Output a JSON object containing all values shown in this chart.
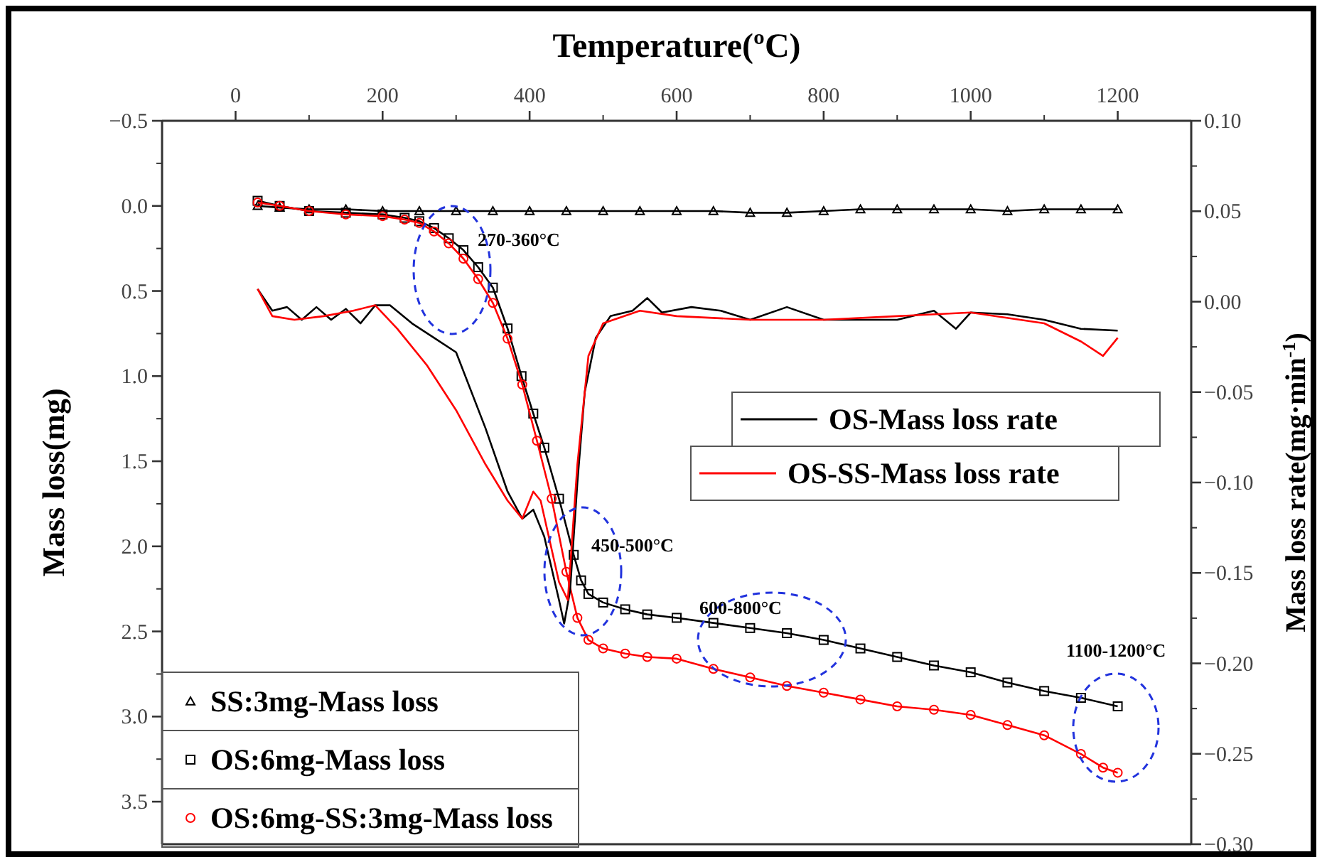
{
  "chart_data": {
    "type": "line",
    "xlabel": "Temperature(ºC)",
    "ylabel": "Mass loss(mg)",
    "y2label": "Mass loss rate(mg·min$^{-1}$)",
    "xlim": [
      -100,
      1300
    ],
    "xticks": [
      0,
      200,
      400,
      600,
      800,
      1000,
      1200
    ],
    "ylim": [
      3.75,
      -0.5
    ],
    "yticks": [
      {
        "value": -0.5,
        "label": "−0.5"
      },
      {
        "value": 0,
        "label": "0.0"
      },
      {
        "value": 0.5,
        "label": "0.5"
      },
      {
        "value": 1,
        "label": "1.0"
      },
      {
        "value": 1.5,
        "label": "1.5"
      },
      {
        "value": 2,
        "label": "2.0"
      },
      {
        "value": 2.5,
        "label": "2.5"
      },
      {
        "value": 3,
        "label": "3.0"
      },
      {
        "value": 3.5,
        "label": "3.5"
      }
    ],
    "y2lim": [
      -0.3,
      0.1
    ],
    "y2ticks": [
      {
        "value": 0.1,
        "label": "0.10"
      },
      {
        "value": 0.05,
        "label": "0.05"
      },
      {
        "value": 0,
        "label": "0.00"
      },
      {
        "value": -0.05,
        "label": "−0.05"
      },
      {
        "value": -0.1,
        "label": "−0.10"
      },
      {
        "value": -0.15,
        "label": "−0.15"
      },
      {
        "value": -0.2,
        "label": "−0.20"
      },
      {
        "value": -0.25,
        "label": "−0.25"
      },
      {
        "value": -0.3,
        "label": "−0.30"
      }
    ],
    "legend": "bottom left",
    "grid": false,
    "line_style": "solid",
    "series": [
      {
        "name": "SS:3mg-Mass loss",
        "color": "#000000",
        "marker": "triangle",
        "x": [
          30,
          60,
          100,
          150,
          200,
          250,
          300,
          350,
          400,
          450,
          500,
          550,
          600,
          650,
          700,
          750,
          800,
          850,
          900,
          950,
          1000,
          1050,
          1100,
          1150,
          1200
        ],
        "values": [
          0,
          0.01,
          0.02,
          0.02,
          0.03,
          0.03,
          0.03,
          0.03,
          0.03,
          0.03,
          0.03,
          0.03,
          0.03,
          0.03,
          0.04,
          0.04,
          0.03,
          0.02,
          0.02,
          0.02,
          0.02,
          0.03,
          0.02,
          0.02,
          0.02
        ]
      },
      {
        "name": "OS:6mg-Mass loss",
        "color": "#000000",
        "marker": "square",
        "x": [
          30,
          60,
          100,
          150,
          200,
          230,
          250,
          270,
          290,
          310,
          330,
          350,
          370,
          389,
          405,
          420,
          440,
          460,
          470,
          480,
          500,
          530,
          560,
          600,
          650,
          700,
          750,
          800,
          850,
          900,
          950,
          1000,
          1050,
          1100,
          1150,
          1200
        ],
        "values": [
          -0.03,
          0,
          0.03,
          0.04,
          0.05,
          0.07,
          0.09,
          0.13,
          0.19,
          0.26,
          0.36,
          0.48,
          0.72,
          1.0,
          1.22,
          1.42,
          1.72,
          2.05,
          2.2,
          2.28,
          2.33,
          2.37,
          2.4,
          2.42,
          2.45,
          2.48,
          2.51,
          2.55,
          2.6,
          2.65,
          2.7,
          2.74,
          2.8,
          2.85,
          2.89,
          2.94
        ]
      },
      {
        "name": "OS:6mg-SS:3mg-Mass loss",
        "color": "#ff0000",
        "marker": "circle",
        "x": [
          30,
          60,
          100,
          150,
          200,
          230,
          250,
          270,
          290,
          310,
          330,
          350,
          370,
          390,
          410,
          430,
          450,
          465,
          480,
          500,
          530,
          560,
          600,
          650,
          700,
          750,
          800,
          850,
          900,
          950,
          1000,
          1050,
          1100,
          1150,
          1180,
          1200
        ],
        "values": [
          -0.02,
          0,
          0.03,
          0.05,
          0.06,
          0.08,
          0.1,
          0.15,
          0.22,
          0.31,
          0.43,
          0.57,
          0.78,
          1.05,
          1.38,
          1.72,
          2.15,
          2.42,
          2.55,
          2.6,
          2.63,
          2.65,
          2.66,
          2.72,
          2.77,
          2.82,
          2.86,
          2.9,
          2.94,
          2.96,
          2.99,
          3.05,
          3.11,
          3.22,
          3.3,
          3.33
        ]
      },
      {
        "name": "OS-Mass loss rate",
        "color": "#000000",
        "axis": "y2",
        "marker": "none",
        "x": [
          30,
          50,
          70,
          90,
          110,
          130,
          150,
          170,
          190,
          210,
          240,
          270,
          300,
          340,
          370,
          390,
          405,
          420,
          440,
          447,
          455,
          465,
          475,
          490,
          510,
          540,
          560,
          580,
          620,
          660,
          700,
          750,
          800,
          850,
          900,
          950,
          980,
          1000,
          1050,
          1100,
          1150,
          1200
        ],
        "values": [
          0.007,
          -0.005,
          -0.003,
          -0.01,
          -0.003,
          -0.01,
          -0.004,
          -0.012,
          -0.002,
          -0.002,
          -0.012,
          -0.02,
          -0.028,
          -0.07,
          -0.105,
          -0.12,
          -0.115,
          -0.13,
          -0.165,
          -0.178,
          -0.16,
          -0.1,
          -0.05,
          -0.02,
          -0.008,
          -0.005,
          0.002,
          -0.006,
          -0.003,
          -0.005,
          -0.01,
          -0.003,
          -0.01,
          -0.01,
          -0.01,
          -0.005,
          -0.015,
          -0.006,
          -0.007,
          -0.01,
          -0.015,
          -0.016
        ]
      },
      {
        "name": "OS-SS-Mass loss rate",
        "color": "#ff0000",
        "axis": "y2",
        "marker": "none",
        "x": [
          30,
          50,
          80,
          120,
          160,
          190,
          220,
          260,
          300,
          340,
          370,
          390,
          405,
          415,
          440,
          452,
          465,
          480,
          500,
          550,
          600,
          700,
          800,
          900,
          1000,
          1100,
          1150,
          1180,
          1200
        ],
        "values": [
          0.007,
          -0.008,
          -0.01,
          -0.008,
          -0.005,
          -0.002,
          -0.015,
          -0.035,
          -0.06,
          -0.09,
          -0.11,
          -0.12,
          -0.105,
          -0.11,
          -0.155,
          -0.165,
          -0.09,
          -0.03,
          -0.012,
          -0.005,
          -0.008,
          -0.01,
          -0.01,
          -0.008,
          -0.006,
          -0.012,
          -0.022,
          -0.03,
          -0.02
        ]
      }
    ],
    "annotations": [
      "270-360°C",
      "450-500°C",
      "600-800°C",
      "1100-1200°C"
    ]
  }
}
